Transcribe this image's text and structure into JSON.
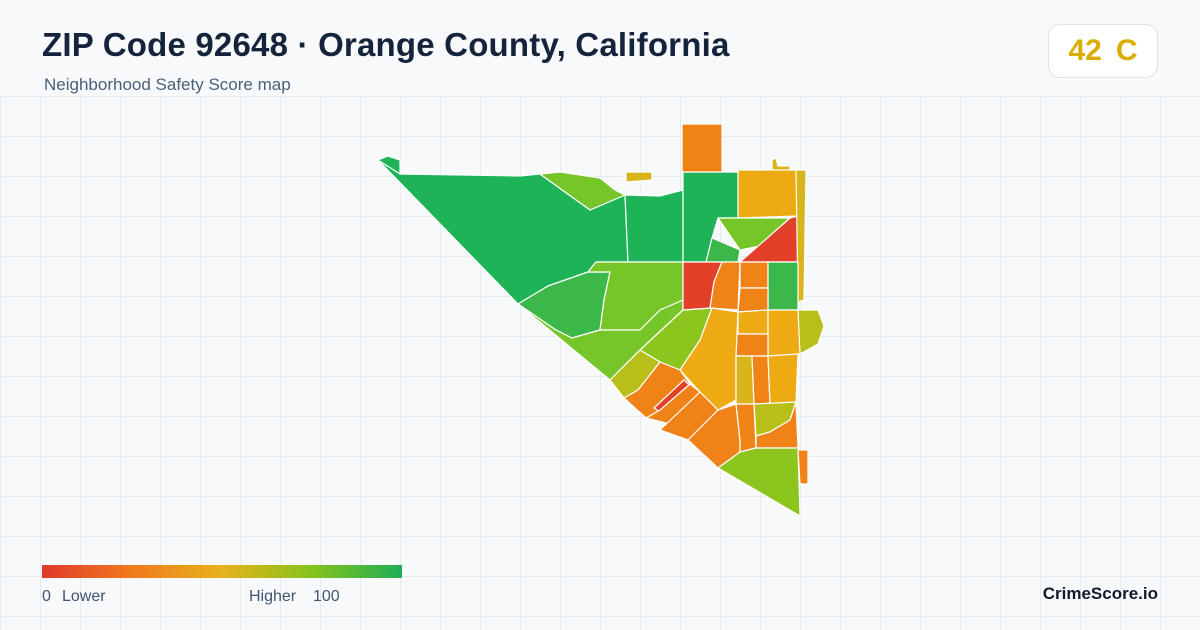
{
  "header": {
    "title": "ZIP Code 92648 · Orange County, California",
    "subtitle": "Neighborhood Safety Score map"
  },
  "score": {
    "value": "42",
    "grade": "C",
    "color": "#d9ae00"
  },
  "legend": {
    "min": "0",
    "low_label": "Lower",
    "high_label": "Higher",
    "max": "100",
    "gradient_colors": [
      "#e03a2a",
      "#f07a1e",
      "#e8b21a",
      "#86c21c",
      "#1eae55"
    ]
  },
  "brand": "CrimeScore.io",
  "map": {
    "color_scale": {
      "red": "#e3402a",
      "orange": "#f08318",
      "amber": "#eeaa12",
      "yellow": "#d8b51a",
      "olive": "#b7bf18",
      "light_green": "#8cc51e",
      "green": "#76c62a",
      "mid_green": "#3cb74a",
      "dark_green": "#1eb356"
    }
  }
}
